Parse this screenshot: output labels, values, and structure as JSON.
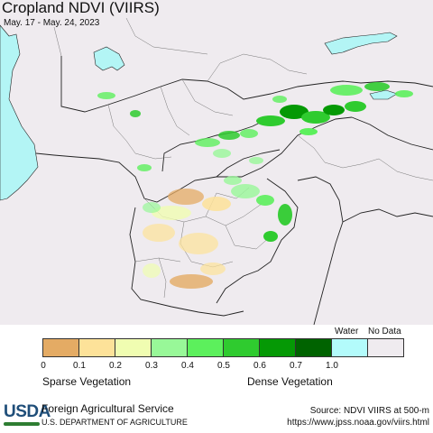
{
  "map": {
    "title": "Cropland NDVI (VIIRS)",
    "date_range": "May. 17 - May. 24, 2023",
    "background_color": "#efebef",
    "water_color": "#b3f5f5",
    "border_color": "#222222"
  },
  "legend": {
    "bins": [
      {
        "label": "0",
        "color": "#e4ab64"
      },
      {
        "label": "0.1",
        "color": "#fde299"
      },
      {
        "label": "0.2",
        "color": "#f0fdb1"
      },
      {
        "label": "0.3",
        "color": "#98f898"
      },
      {
        "label": "0.4",
        "color": "#5cf05c"
      },
      {
        "label": "0.5",
        "color": "#2fcb2f"
      },
      {
        "label": "0.6",
        "color": "#059905"
      },
      {
        "label": "0.7",
        "color": "#006300"
      },
      {
        "label": "1.0",
        "color": "#b3fbfb"
      }
    ],
    "nodata_color": "#efebef",
    "water_label": "Water",
    "nodata_label": "No Data",
    "sparse_label": "Sparse Vegetation",
    "dense_label": "Dense Vegetation"
  },
  "footer": {
    "logo_text": "USDA",
    "agency": "Foreign Agricultural Service",
    "department": "U.S. DEPARTMENT OF AGRICULTURE",
    "source_line1": "Source: NDVI VIIRS at 500-m",
    "source_line2": "https://www.jpss.noaa.gov/viirs.html"
  }
}
